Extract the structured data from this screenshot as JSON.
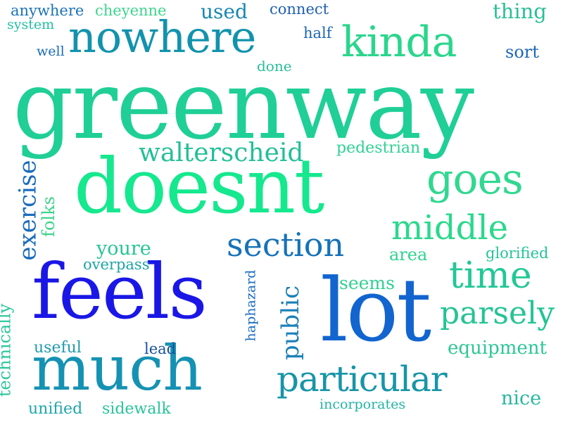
{
  "words": [
    {
      "text": "greenway",
      "color": "#1fcf96"
    },
    {
      "text": "doesnt",
      "color": "#15e88e"
    },
    {
      "text": "feels",
      "color": "#1a17e6"
    },
    {
      "text": "lot",
      "color": "#1265cf"
    },
    {
      "text": "much",
      "color": "#1592b3"
    },
    {
      "text": "nowhere",
      "color": "#1293ad"
    },
    {
      "text": "kinda",
      "color": "#2ad68c"
    },
    {
      "text": "goes",
      "color": "#30d890"
    },
    {
      "text": "section",
      "color": "#1672b8"
    },
    {
      "text": "middle",
      "color": "#2ad98c"
    },
    {
      "text": "time",
      "color": "#22c896"
    },
    {
      "text": "particular",
      "color": "#1795a8"
    },
    {
      "text": "parsely",
      "color": "#24c495"
    },
    {
      "text": "walterscheid",
      "color": "#22bf98"
    },
    {
      "text": "exercise",
      "color": "#1a6cbd"
    },
    {
      "text": "public",
      "color": "#1b80b8"
    },
    {
      "text": "folks",
      "color": "#3bd389"
    },
    {
      "text": "youre",
      "color": "#28c594"
    },
    {
      "text": "overpass",
      "color": "#1ea3a5"
    },
    {
      "text": "area",
      "color": "#2ed38f"
    },
    {
      "text": "glorified",
      "color": "#24c398"
    },
    {
      "text": "seems",
      "color": "#2fd091"
    },
    {
      "text": "haphazard",
      "color": "#186bc0"
    },
    {
      "text": "technically",
      "color": "#2ac69a"
    },
    {
      "text": "useful",
      "color": "#1f9aad"
    },
    {
      "text": "lead",
      "color": "#164f9e"
    },
    {
      "text": "equipment",
      "color": "#2ec694"
    },
    {
      "text": "nice",
      "color": "#27b79e"
    },
    {
      "text": "unified",
      "color": "#20a5a8"
    },
    {
      "text": "sidewalk",
      "color": "#27c49a"
    },
    {
      "text": "incorporates",
      "color": "#24b3a2"
    },
    {
      "text": "pedestrian",
      "color": "#2fd193"
    },
    {
      "text": "anywhere",
      "color": "#1a73b7"
    },
    {
      "text": "cheyenne",
      "color": "#3dd58c"
    },
    {
      "text": "used",
      "color": "#1a87b3"
    },
    {
      "text": "connect",
      "color": "#1e5faf"
    },
    {
      "text": "thing",
      "color": "#2bbf98"
    },
    {
      "text": "system",
      "color": "#23bfa0"
    },
    {
      "text": "half",
      "color": "#1d66b5"
    },
    {
      "text": "well",
      "color": "#1a6cb5"
    },
    {
      "text": "done",
      "color": "#28bd99"
    },
    {
      "text": "sort",
      "color": "#1b66b9"
    }
  ]
}
